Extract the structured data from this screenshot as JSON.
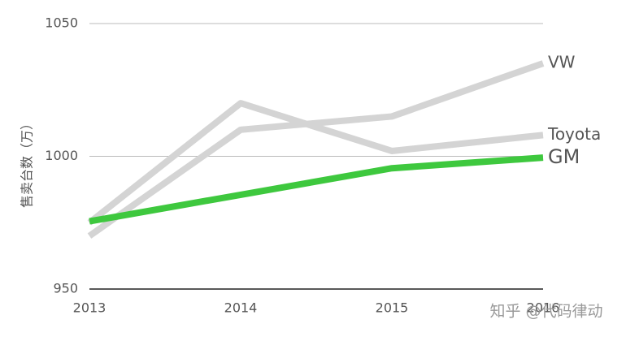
{
  "chart_data": {
    "type": "line",
    "y_label": "售卖台数（万）",
    "categories": [
      "2013",
      "2014",
      "2015",
      "2016"
    ],
    "series": [
      {
        "name": "VW",
        "color": "#d4d4d4",
        "label_color": "#555555",
        "values": [
          970,
          1010,
          1015,
          1035
        ]
      },
      {
        "name": "Toyota",
        "color": "#d4d4d4",
        "label_color": "#555555",
        "values": [
          975,
          1020,
          1002,
          1008
        ]
      },
      {
        "name": "GM",
        "color": "#3ec83e",
        "label_color": "#3ec83e",
        "values": [
          975.5,
          985.5,
          995.5,
          999.5
        ]
      }
    ],
    "ylim": [
      950,
      1050
    ],
    "yticks": [
      950,
      1000,
      1050
    ],
    "grid": true
  },
  "watermark": "知乎 @代码律动"
}
